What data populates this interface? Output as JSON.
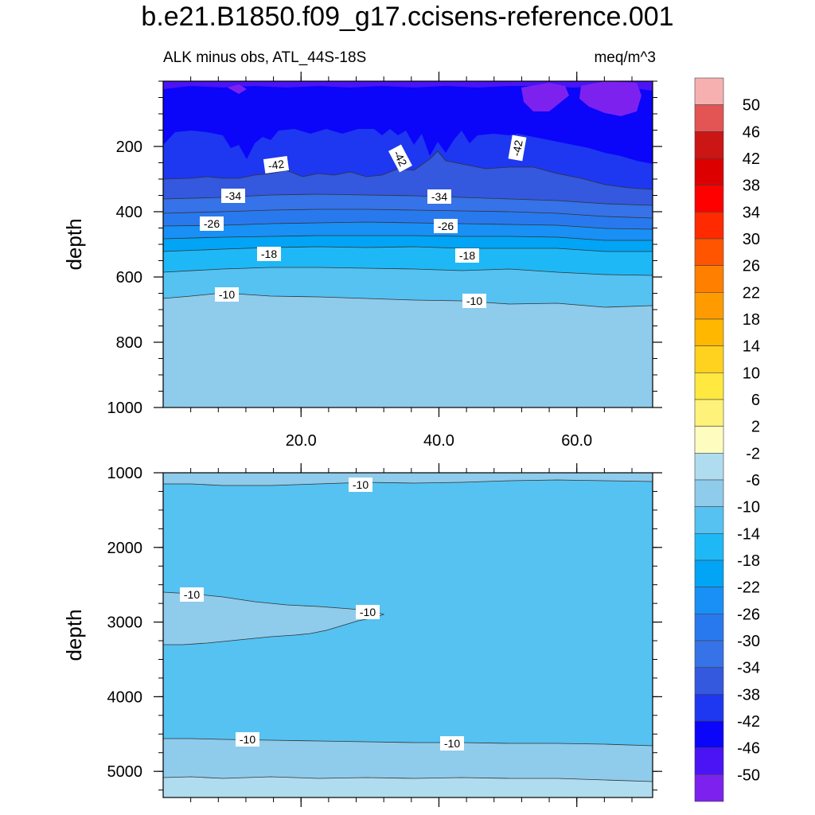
{
  "title": "b.e21.B1850.f09_g17.ccisens-reference.001",
  "left_title": "ALK minus obs, ATL_44S-18S",
  "right_title": "meq/m^3",
  "chart_data": [
    {
      "type": "heatmap",
      "panel": "upper",
      "ylabel": "depth",
      "xlabel": "",
      "ylim": [
        1000,
        0
      ],
      "xlim": [
        0,
        71
      ],
      "y_ticks": [
        200,
        400,
        600,
        800,
        1000
      ],
      "y_tick_labels": [
        "200",
        "400",
        "600",
        "800",
        "1000"
      ],
      "x_ticks": [
        20,
        40,
        60
      ],
      "x_tick_labels": [
        "20.0",
        "40.0",
        "60.0"
      ],
      "contour_labels": [
        "-42",
        "-42",
        "-42",
        "-34",
        "-34",
        "-26",
        "-26",
        "-18",
        "-18",
        "-10",
        "-10"
      ],
      "bands": [
        {
          "value": -50,
          "boundary_depth": 30
        },
        {
          "value": -46,
          "boundary_depth": 190
        },
        {
          "value": -42,
          "boundary_depth": 290
        },
        {
          "value": -38,
          "boundary_depth": 350
        },
        {
          "value": -34,
          "boundary_depth": 400
        },
        {
          "value": -30,
          "boundary_depth": 445
        },
        {
          "value": -26,
          "boundary_depth": 490
        },
        {
          "value": -22,
          "boundary_depth": 540
        },
        {
          "value": -18,
          "boundary_depth": 590
        },
        {
          "value": -14,
          "boundary_depth": 670
        },
        {
          "value": -10,
          "boundary_depth": 1000
        }
      ]
    },
    {
      "type": "heatmap",
      "panel": "lower",
      "ylabel": "depth",
      "xlabel": "",
      "ylim": [
        5350,
        1000
      ],
      "xlim": [
        0,
        71
      ],
      "y_ticks": [
        1000,
        2000,
        3000,
        4000,
        5000
      ],
      "y_tick_labels": [
        "1000",
        "2000",
        "3000",
        "4000",
        "5000"
      ],
      "contour_labels": [
        "-10",
        "-10",
        "-10",
        "-10",
        "-10"
      ],
      "bands": [
        {
          "value": -10,
          "range": [
            1000,
            1150
          ]
        },
        {
          "value": -14,
          "range": [
            1150,
            4570
          ]
        },
        {
          "value": -10,
          "range": [
            2600,
            3250
          ],
          "extent_x": [
            0,
            32
          ]
        },
        {
          "value": -10,
          "range": [
            4570,
            5100
          ]
        },
        {
          "value": -6,
          "range": [
            5100,
            5350
          ]
        }
      ]
    }
  ],
  "colorbar": {
    "labels": [
      "50",
      "46",
      "42",
      "38",
      "34",
      "30",
      "26",
      "22",
      "18",
      "14",
      "10",
      "6",
      "2",
      "-2",
      "-6",
      "-10",
      "-14",
      "-18",
      "-22",
      "-26",
      "-30",
      "-34",
      "-38",
      "-42",
      "-46",
      "-50"
    ],
    "colors": [
      "#f7b0b0",
      "#e35454",
      "#cc1515",
      "#dd0000",
      "#ff0000",
      "#ff2a00",
      "#ff5500",
      "#ff7f00",
      "#ff9b00",
      "#ffb700",
      "#ffd21f",
      "#ffe840",
      "#fff27a",
      "#fffcc0",
      "#b0dcf0",
      "#8fcbeb",
      "#55c2f2",
      "#1fb8f6",
      "#02a4f5",
      "#1890f5",
      "#2979ee",
      "#3672e8",
      "#3458de",
      "#1e37f0",
      "#0b05fa",
      "#4a14f5",
      "#7d22ee"
    ]
  }
}
